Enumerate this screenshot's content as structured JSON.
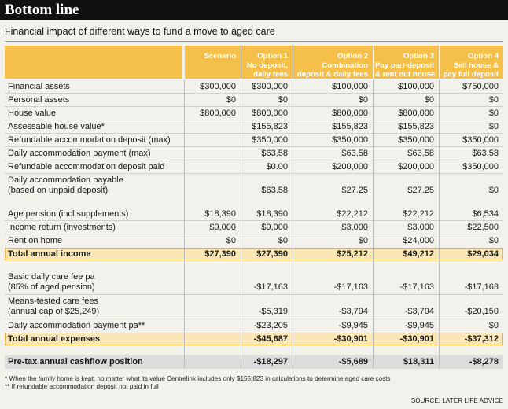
{
  "title": "Bottom line",
  "subtitle": "Financial impact of different ways to fund a move to aged care",
  "headers": [
    "Scenario",
    "Option 1\nNo deposit,\ndaily fees",
    "Option 2\nCombination\ndeposit & daily fees",
    "Option 3\nPay part-deposit\n& rent out house",
    "Option 4\nSell house &\npay full deposit"
  ],
  "section1": [
    {
      "label": "Financial assets",
      "values": [
        "$300,000",
        "$300,000",
        "$100,000",
        "$100,000",
        "$750,000"
      ]
    },
    {
      "label": "Personal assets",
      "values": [
        "$0",
        "$0",
        "$0",
        "$0",
        "$0"
      ]
    },
    {
      "label": "House value",
      "values": [
        "$800,000",
        "$800,000",
        "$800,000",
        "$800,000",
        "$0"
      ]
    },
    {
      "label": "Assessable house value*",
      "values": [
        "",
        "$155,823",
        "$155,823",
        "$155,823",
        "$0"
      ]
    },
    {
      "label": "Refundable accommodation deposit (max)",
      "values": [
        "",
        "$350,000",
        "$350,000",
        "$350,000",
        "$350,000"
      ]
    },
    {
      "label": "Daily accommodation payment (max)",
      "values": [
        "",
        "$63.58",
        "$63.58",
        "$63.58",
        "$63.58"
      ]
    },
    {
      "label": "Refundable accommodation deposit paid",
      "values": [
        "",
        "$0.00",
        "$200,000",
        "$200,000",
        "$350,000"
      ]
    },
    {
      "label": "Daily accommodation payable\n(based on unpaid deposit)",
      "values": [
        "",
        "$63.58",
        "$27.25",
        "$27.25",
        "$0"
      ]
    }
  ],
  "section2": [
    {
      "label": "Age pension (incl supplements)",
      "values": [
        "$18,390",
        "$18,390",
        "$22,212",
        "$22,212",
        "$6,534"
      ]
    },
    {
      "label": "Income return (investments)",
      "values": [
        "$9,000",
        "$9,000",
        "$3,000",
        "$3,000",
        "$22,500"
      ]
    },
    {
      "label": "Rent on home",
      "values": [
        "$0",
        "$0",
        "$0",
        "$24,000",
        "$0"
      ]
    }
  ],
  "total_income": {
    "label": "Total annual income",
    "values": [
      "$27,390",
      "$27,390",
      "$25,212",
      "$49,212",
      "$29,034"
    ]
  },
  "section3": [
    {
      "label": "Basic daily care fee pa\n(85% of aged pension)",
      "values": [
        "",
        "-$17,163",
        "-$17,163",
        "-$17,163",
        "-$17,163"
      ]
    },
    {
      "label": "Means-tested care fees\n(annual cap of $25,249)",
      "values": [
        "",
        "-$5,319",
        "-$3,794",
        "-$3,794",
        "-$20,150"
      ]
    },
    {
      "label": "Daily accommodation payment pa**",
      "values": [
        "",
        "-$23,205",
        "-$9,945",
        "-$9,945",
        "$0"
      ]
    }
  ],
  "total_expenses": {
    "label": "Total annual expenses",
    "values": [
      "",
      "-$45,687",
      "-$30,901",
      "-$30,901",
      "-$37,312"
    ]
  },
  "cashflow": {
    "label": "Pre-tax annual cashflow position",
    "values": [
      "",
      "-$18,297",
      "-$5,689",
      "$18,311",
      "-$8,278"
    ]
  },
  "footnotes": [
    "* When the family home is kept, no matter what its value Centrelink includes only $155,823 in calculations to determine aged care costs",
    "** If refundable accommodation deposit not paid in full"
  ],
  "source": "SOURCE: LATER LIFE ADVICE"
}
